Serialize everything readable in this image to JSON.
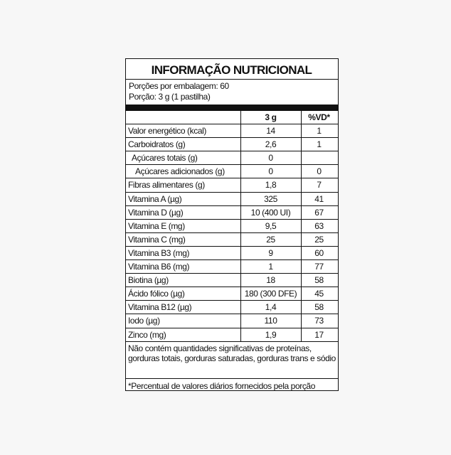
{
  "header": {
    "title": "INFORMAÇÃO NUTRICIONAL",
    "servings": "Porções por embalagem: 60",
    "serving_size": "Porção: 3 g (1 pastilha)"
  },
  "table": {
    "columns": [
      "3 g",
      "%VD*"
    ],
    "rows": [
      [
        "Valor energético (kcal)",
        "14",
        "1"
      ],
      [
        "Carboidratos (g)",
        "2,6",
        "1"
      ],
      [
        "Açúcares totais (g)",
        "0",
        null
      ],
      [
        "Açúcares adicionados (g)",
        "0",
        "0"
      ],
      [
        "Fibras alimentares (g)",
        "1,8",
        "7"
      ],
      [
        "Vitamina A (µg)",
        "325",
        "41"
      ],
      [
        "Vitamina D (µg)",
        "10 (400 UI)",
        "67"
      ],
      [
        "Vitamina E (mg)",
        "9,5",
        "63"
      ],
      [
        "Vitamina C (mg)",
        "25",
        "25"
      ],
      [
        "Vitamina B3 (mg)",
        "9",
        "60"
      ],
      [
        "Vitamina B6 (mg)",
        "1",
        "77"
      ],
      [
        "Biotina (µg)",
        "18",
        "58"
      ],
      [
        "Ácido fólico (µg)",
        "180 (300 DFE)",
        "45"
      ],
      [
        "Vitamina B12 (µg)",
        "1,4",
        "58"
      ],
      [
        "Iodo (µg)",
        "110",
        "73"
      ],
      [
        "Zinco (mg)",
        "1,9",
        "17"
      ]
    ]
  },
  "footer": {
    "note": "Não contém quantidades significativas de proteínas, gorduras totais, gorduras saturadas, gorduras trans e sódio",
    "footnote": "*Percentual de valores diários fornecidos pela porção"
  }
}
